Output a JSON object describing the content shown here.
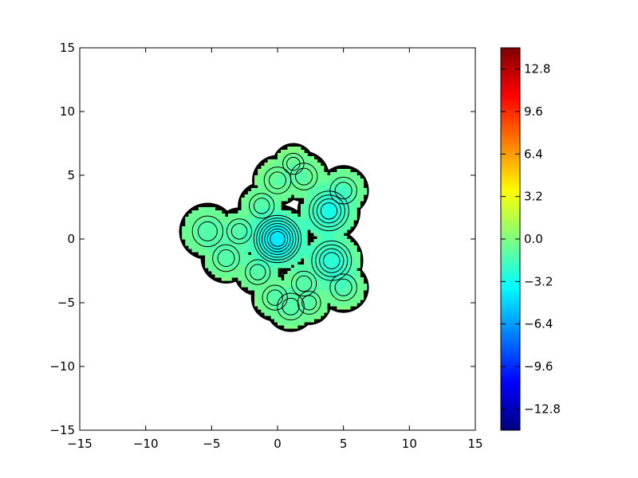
{
  "chart_data": {
    "type": "contour",
    "title": "",
    "xlabel": "",
    "ylabel": "",
    "xlim": [
      -15,
      15
    ],
    "ylim": [
      -15,
      15
    ],
    "x_ticks": [
      -15,
      -10,
      -5,
      0,
      5,
      10,
      15
    ],
    "y_ticks": [
      -15,
      -10,
      -5,
      0,
      5,
      10,
      15
    ],
    "x_tick_labels": [
      "−15",
      "−10",
      "−5",
      "0",
      "5",
      "10",
      "15"
    ],
    "y_tick_labels": [
      "−15",
      "−10",
      "−5",
      "0",
      "5",
      "10",
      "15"
    ],
    "grid": false,
    "colormap": "jet",
    "colorbar": {
      "range": [
        -14.4,
        14.4
      ],
      "ticks": [
        12.8,
        9.6,
        6.4,
        3.2,
        0.0,
        -3.2,
        -6.4,
        -9.6,
        -12.8
      ],
      "tick_labels": [
        "12.8",
        "9.6",
        "6.4",
        "3.2",
        "0.0",
        "−3.2",
        "−6.4",
        "−9.6",
        "−12.8"
      ]
    },
    "features": [
      {
        "x": 0.0,
        "y": 0.0,
        "r": 2.0,
        "depth": -4.3
      },
      {
        "x": 3.9,
        "y": 2.2,
        "r": 1.8,
        "depth": -2.8
      },
      {
        "x": 4.1,
        "y": -1.7,
        "r": 1.8,
        "depth": -2.6
      },
      {
        "x": -5.3,
        "y": 0.6,
        "r": 1.6,
        "depth": -1.4
      },
      {
        "x": -3.9,
        "y": -1.5,
        "r": 1.4,
        "depth": -1.1
      },
      {
        "x": -2.9,
        "y": 0.6,
        "r": 1.3,
        "depth": -0.9
      },
      {
        "x": -1.2,
        "y": 2.6,
        "r": 1.3,
        "depth": -0.9
      },
      {
        "x": 0.0,
        "y": 4.6,
        "r": 1.4,
        "depth": -0.8
      },
      {
        "x": 2.0,
        "y": 4.9,
        "r": 1.4,
        "depth": -0.7
      },
      {
        "x": 1.2,
        "y": 5.9,
        "r": 1.1,
        "depth": -0.5
      },
      {
        "x": 5.0,
        "y": 3.8,
        "r": 1.4,
        "depth": -1.1
      },
      {
        "x": 5.0,
        "y": -3.8,
        "r": 1.4,
        "depth": -1.1
      },
      {
        "x": 1.0,
        "y": -5.3,
        "r": 1.4,
        "depth": -0.9
      },
      {
        "x": -0.2,
        "y": -4.6,
        "r": 1.3,
        "depth": -0.8
      },
      {
        "x": -1.5,
        "y": -2.6,
        "r": 1.3,
        "depth": -0.9
      },
      {
        "x": 2.0,
        "y": -3.5,
        "r": 1.3,
        "depth": -0.7
      },
      {
        "x": 2.4,
        "y": -5.0,
        "r": 1.2,
        "depth": -0.6
      }
    ]
  }
}
